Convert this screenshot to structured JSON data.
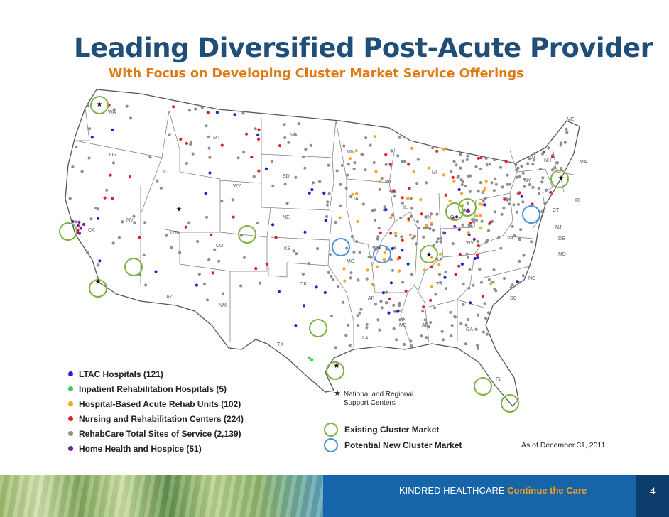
{
  "title": "Leading Diversified Post-Acute Provider",
  "subtitle": "With Focus on Developing Cluster Market Service Offerings",
  "colors": {
    "ltac": "#1f1fd6",
    "irh": "#3ccf4f",
    "harus": "#f5a623",
    "nursing": "#e02020",
    "rehabcare": "#8e8e8e",
    "home_health": "#7a1fa2",
    "existing_cluster": "#7cb342",
    "potential_cluster": "#4a90d9",
    "title": "#1f4e79",
    "subtitle": "#e07b14"
  },
  "map": {
    "states": [
      "WA",
      "OR",
      "CA",
      "NV",
      "ID",
      "MT",
      "WY",
      "UT",
      "AZ",
      "CO",
      "NM",
      "ND",
      "SD",
      "NE",
      "KS",
      "OK",
      "TX",
      "MN",
      "IA",
      "MO",
      "AR",
      "LA",
      "WI",
      "IL",
      "MS",
      "MI",
      "IN",
      "KY",
      "TN",
      "AL",
      "OH",
      "GA",
      "FL",
      "SC",
      "NC",
      "VA",
      "WV",
      "PA",
      "NY",
      "VT",
      "NH",
      "ME",
      "MA",
      "RI",
      "CT",
      "NJ",
      "DE",
      "MD"
    ]
  },
  "legend": [
    {
      "label": "LTAC Hospitals (121)",
      "color": "#1f1fd6"
    },
    {
      "label": "Inpatient Rehabilitation Hospitals (5)",
      "color": "#3ccf4f"
    },
    {
      "label": "Hospital-Based Acute Rehab Units (102)",
      "color": "#f5a623"
    },
    {
      "label": "Nursing and Rehabilitation Centers (224)",
      "color": "#e02020"
    },
    {
      "label": "RehabCare Total Sites of Service (2,139)",
      "color": "#8e8e8e"
    },
    {
      "label": "Home Health and Hospice (51)",
      "color": "#7a1fa2"
    }
  ],
  "support_centers": {
    "line1": "National and Regional",
    "line2": "Support Centers",
    "icon": "star-icon"
  },
  "cluster_legend": {
    "existing": "Existing Cluster Market",
    "potential": "Potential New Cluster Market"
  },
  "as_of": "As of December 31, 2011",
  "footer": {
    "brand": "KINDRED HEALTHCARE",
    "tagline": "Continue the Care",
    "page": "4"
  }
}
